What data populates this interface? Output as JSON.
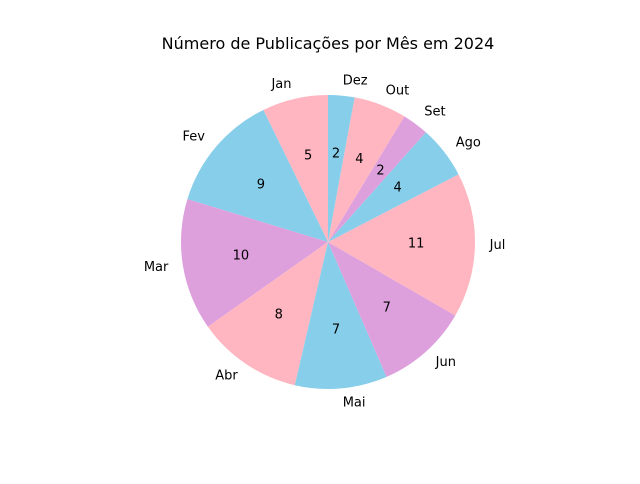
{
  "chart_data": {
    "type": "pie",
    "title": "Número de Publicações por Mês em 2024",
    "categories": [
      "Jan",
      "Fev",
      "Mar",
      "Abr",
      "Mai",
      "Jun",
      "Jul",
      "Ago",
      "Set",
      "Out",
      "Dez"
    ],
    "values": [
      5,
      9,
      10,
      8,
      7,
      7,
      11,
      4,
      2,
      4,
      2
    ],
    "colors": [
      "#FFB6C1",
      "#87CEEB",
      "#DDA0DD",
      "#FFB6C1",
      "#87CEEB",
      "#DDA0DD",
      "#FFB6C1",
      "#87CEEB",
      "#DDA0DD",
      "#FFB6C1",
      "#87CEEB"
    ],
    "start_angle_deg": 90,
    "direction": "counterclockwise",
    "legend": "none"
  }
}
